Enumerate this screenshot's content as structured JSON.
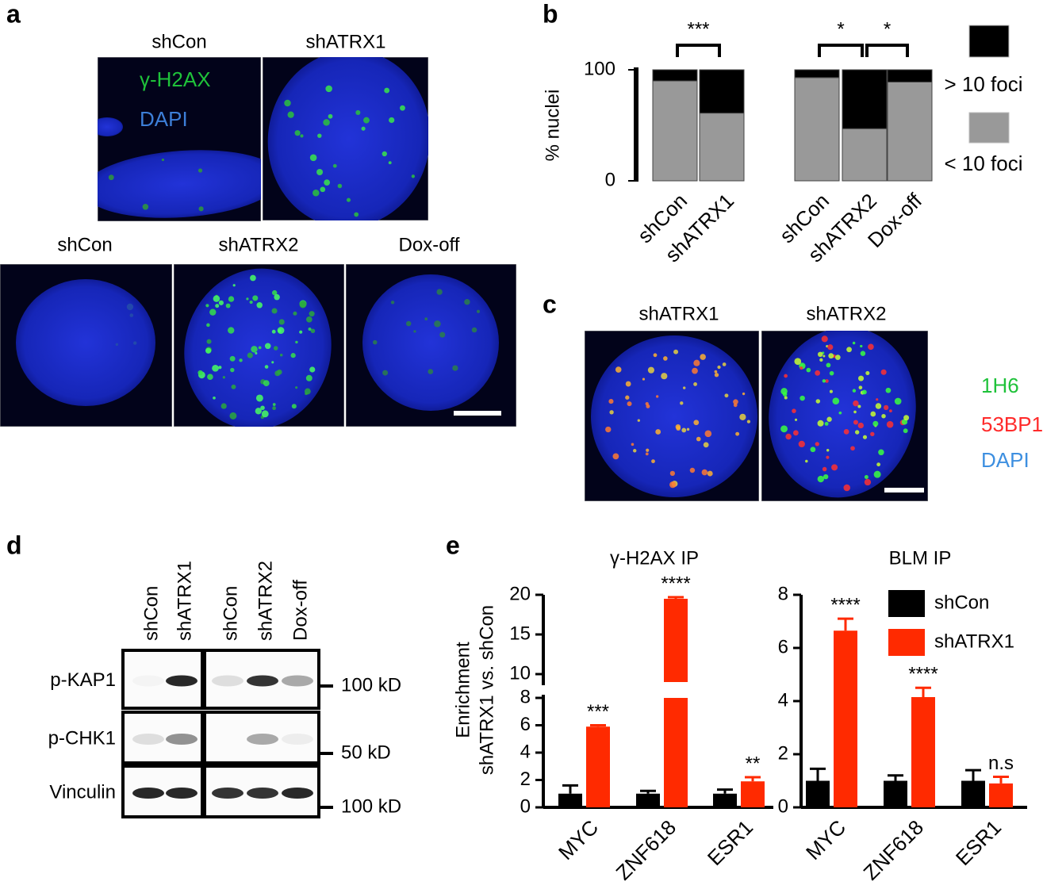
{
  "panel_labels": [
    "a",
    "b",
    "c",
    "d",
    "e"
  ],
  "panel_a": {
    "top_titles": [
      "shCon",
      "shATRX1"
    ],
    "stains": [
      "γ-H2AX",
      "DAPI"
    ],
    "bottom_titles": [
      "shCon",
      "shATRX2",
      "Dox-off"
    ]
  },
  "panel_c": {
    "titles": [
      "shATRX1",
      "shATRX2"
    ],
    "stains": [
      "1H6",
      "53BP1",
      "DAPI"
    ]
  },
  "panel_d": {
    "columns": [
      "shCon",
      "shATRX1",
      "shCon",
      "shATRX2",
      "Dox-off"
    ],
    "rows": [
      "p-KAP1",
      "p-CHK1",
      "Vinculin"
    ],
    "markers": [
      "100 kD",
      "50 kD",
      "100 kD"
    ]
  },
  "chart_data": [
    {
      "type": "stacked_bar",
      "ylabel": "% nuclei",
      "categories": [
        "shCon",
        "shATRX1",
        "shCon",
        "shATRX2",
        "Dox-off"
      ],
      "series": [
        {
          "name": "< 10 foci",
          "color": "#999999",
          "values": [
            90,
            61,
            93,
            47,
            89
          ]
        },
        {
          "name": "> 10 foci",
          "color": "#000000",
          "values": [
            10,
            39,
            7,
            53,
            11
          ]
        }
      ],
      "ylim": [
        0,
        100
      ],
      "yticks": [
        0,
        100
      ],
      "significance": [
        {
          "label": "***",
          "pair": [
            0,
            1
          ]
        },
        {
          "label": "*",
          "pair": [
            2,
            3
          ]
        },
        {
          "label": "*",
          "pair": [
            3,
            4
          ]
        }
      ]
    },
    {
      "type": "bar_error",
      "title": "γ-H2AX IP",
      "ylabel": [
        "Enrichment",
        "shATRX1 vs. shCon"
      ],
      "categories": [
        "MYC",
        "ZNF618",
        "ESR1"
      ],
      "series": [
        {
          "color": "#000000",
          "values": [
            1,
            1,
            1
          ],
          "errors": [
            0.6,
            0.2,
            0.3
          ]
        },
        {
          "color": "#ff2a00",
          "values": [
            5.9,
            19.5,
            1.9
          ],
          "errors": [
            0.1,
            0.2,
            0.3
          ],
          "annotations": [
            "***",
            "****",
            "**"
          ]
        }
      ],
      "ylim": [
        0,
        20
      ],
      "ybreak": [
        8,
        9
      ],
      "yticks": [
        0,
        2,
        4,
        6,
        8,
        10,
        15,
        20
      ]
    },
    {
      "type": "bar_error",
      "title": "BLM IP",
      "categories": [
        "MYC",
        "ZNF618",
        "ESR1"
      ],
      "series": [
        {
          "name": "shCon",
          "color": "#000000",
          "values": [
            1,
            1,
            1
          ],
          "errors": [
            0.45,
            0.2,
            0.4
          ]
        },
        {
          "name": "shATRX1",
          "color": "#ff2a00",
          "values": [
            6.65,
            4.15,
            0.9
          ],
          "errors": [
            0.45,
            0.35,
            0.25
          ],
          "annotations": [
            "****",
            "****",
            "n.s"
          ]
        }
      ],
      "ylim": [
        0,
        8
      ],
      "yticks": [
        0,
        2,
        4,
        6,
        8
      ],
      "legend": "upper right"
    }
  ]
}
